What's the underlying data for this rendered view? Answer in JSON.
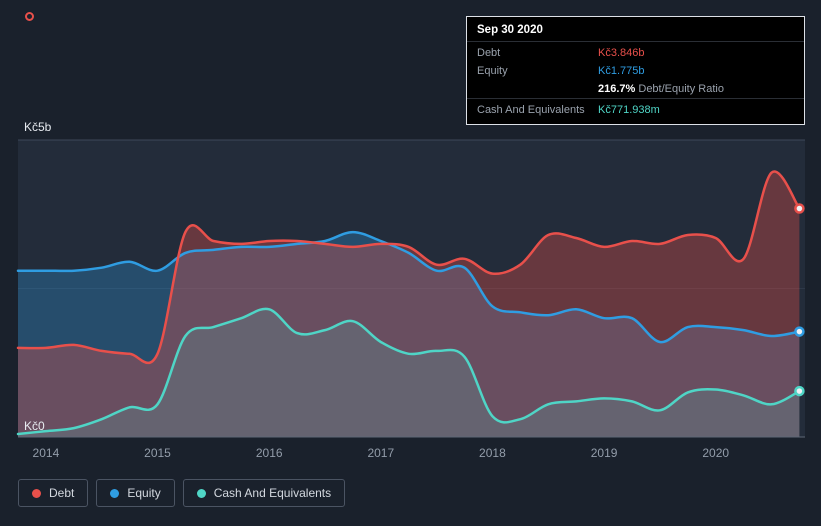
{
  "tooltip": {
    "date": "Sep 30 2020",
    "debt_label": "Debt",
    "debt_value": "Kč3.846b",
    "equity_label": "Equity",
    "equity_value": "Kč1.775b",
    "ratio_value": "216.7%",
    "ratio_label": "Debt/Equity Ratio",
    "cash_label": "Cash And Equivalents",
    "cash_value": "Kč771.938m"
  },
  "colors": {
    "debt": "#e8504b",
    "equity": "#2f9de2",
    "cash": "#4fd5c6",
    "page_background": "#1a212c",
    "plot_background": "#232c3a"
  },
  "chart_data": {
    "type": "area",
    "x": [
      2013.75,
      2014,
      2014.25,
      2014.5,
      2014.75,
      2015,
      2015.25,
      2015.5,
      2015.75,
      2016,
      2016.25,
      2016.5,
      2016.75,
      2017,
      2017.25,
      2017.5,
      2017.75,
      2018,
      2018.25,
      2018.5,
      2018.75,
      2019,
      2019.25,
      2019.5,
      2019.75,
      2020,
      2020.25,
      2020.5,
      2020.75
    ],
    "series": [
      {
        "name": "Debt",
        "color": "#e8504b",
        "fill_opacity": 0.35,
        "values": [
          1.5,
          1.5,
          1.55,
          1.45,
          1.4,
          1.4,
          3.45,
          3.3,
          3.25,
          3.3,
          3.3,
          3.25,
          3.2,
          3.25,
          3.2,
          2.9,
          3.0,
          2.75,
          2.9,
          3.4,
          3.35,
          3.2,
          3.3,
          3.25,
          3.4,
          3.35,
          3.0,
          4.45,
          3.846
        ]
      },
      {
        "name": "Equity",
        "color": "#2f9de2",
        "fill_opacity": 0.3,
        "values": [
          2.8,
          2.8,
          2.8,
          2.85,
          2.95,
          2.8,
          3.1,
          3.15,
          3.2,
          3.2,
          3.25,
          3.3,
          3.45,
          3.3,
          3.1,
          2.8,
          2.85,
          2.2,
          2.1,
          2.05,
          2.15,
          2.0,
          2.0,
          1.6,
          1.85,
          1.85,
          1.8,
          1.7,
          1.775
        ]
      },
      {
        "name": "Cash And Equivalents",
        "color": "#4fd5c6",
        "fill_opacity": 0.16,
        "values": [
          0.05,
          0.1,
          0.15,
          0.3,
          0.5,
          0.55,
          1.7,
          1.85,
          2.0,
          2.15,
          1.75,
          1.8,
          1.95,
          1.6,
          1.4,
          1.45,
          1.35,
          0.35,
          0.3,
          0.55,
          0.6,
          0.65,
          0.6,
          0.45,
          0.75,
          0.8,
          0.7,
          0.55,
          0.772
        ]
      }
    ],
    "xlim": [
      2013.75,
      2020.8
    ],
    "ylim": [
      0,
      5
    ],
    "x_ticks": [
      {
        "value": 2014,
        "label": "2014"
      },
      {
        "value": 2015,
        "label": "2015"
      },
      {
        "value": 2016,
        "label": "2016"
      },
      {
        "value": 2017,
        "label": "2017"
      },
      {
        "value": 2018,
        "label": "2018"
      },
      {
        "value": 2019,
        "label": "2019"
      },
      {
        "value": 2020,
        "label": "2020"
      }
    ],
    "y_axis": {
      "top_label": "Kč5b",
      "bottom_label": "Kč0"
    },
    "grid": true,
    "legend_position": "bottom-left",
    "currency": "Kč"
  }
}
